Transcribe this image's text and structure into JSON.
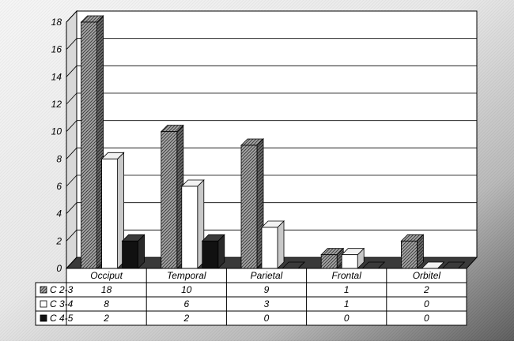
{
  "chart_data": {
    "type": "bar",
    "title": "",
    "xlabel": "",
    "ylabel": "",
    "ylim": [
      0,
      18
    ],
    "yticks": [
      0,
      2,
      4,
      6,
      8,
      10,
      12,
      14,
      16,
      18
    ],
    "grid": true,
    "legend": "data-table-left",
    "categories": [
      "Occiput",
      "Temporal",
      "Parietal",
      "Frontal",
      "Orbitel"
    ],
    "series": [
      {
        "name": "C 2-3",
        "values": [
          18,
          10,
          9,
          1,
          2
        ],
        "style": "hatched",
        "color": "#9a9a9a"
      },
      {
        "name": "C 3-4",
        "values": [
          8,
          6,
          3,
          1,
          0
        ],
        "style": "white",
        "color": "#ffffff"
      },
      {
        "name": "C 4-5",
        "values": [
          2,
          2,
          0,
          0,
          0
        ],
        "style": "black",
        "color": "#111111"
      }
    ]
  }
}
